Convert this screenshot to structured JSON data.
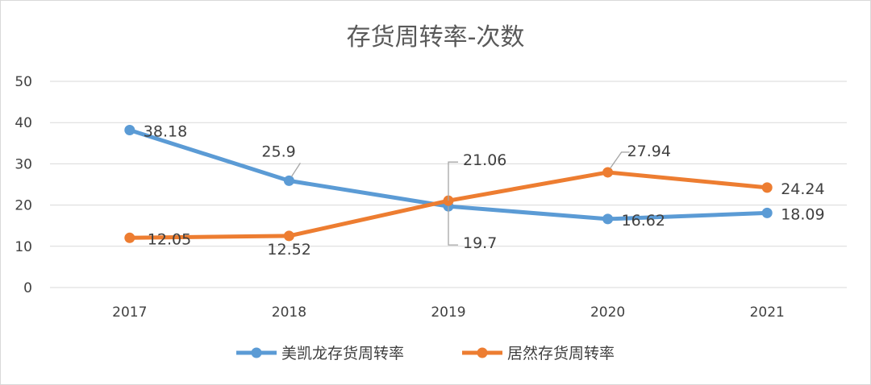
{
  "chart_data": {
    "type": "line",
    "title": "存货周转率-次数",
    "categories": [
      "2017",
      "2018",
      "2019",
      "2020",
      "2021"
    ],
    "ylim": [
      0,
      50
    ],
    "yticks": [
      0,
      10,
      20,
      30,
      40,
      50
    ],
    "grid": true,
    "legend_position": "bottom",
    "series": [
      {
        "name": "美凯龙存货周转率",
        "color": "#5b9bd5",
        "values": [
          38.18,
          25.9,
          19.7,
          16.62,
          18.09
        ]
      },
      {
        "name": "居然存货周转率",
        "color": "#ed7d31",
        "values": [
          12.05,
          12.52,
          21.06,
          27.94,
          24.24
        ]
      }
    ]
  }
}
